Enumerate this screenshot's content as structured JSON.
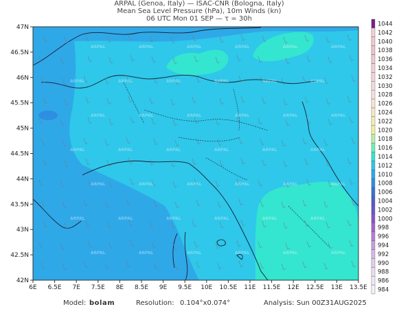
{
  "title": {
    "line1": "ARPAL (Genoa, Italy)  —  ISAC-CNR (Bologna, Italy)",
    "line2": "Mean Sea Level Pressure (hPa), 10m Winds (kn)",
    "line3": "06 UTC Mon 01 SEP  —  τ = 30h"
  },
  "map": {
    "lon_ticks": [
      "6E",
      "6.5E",
      "7E",
      "7.5E",
      "8E",
      "8.5E",
      "9E",
      "9.5E",
      "10E",
      "10.5E",
      "11E",
      "11.5E",
      "12E",
      "12.5E",
      "13E",
      "13.5E"
    ],
    "lat_ticks": [
      "47N",
      "46.5N",
      "46N",
      "45.5N",
      "45N",
      "44.5N",
      "44N",
      "43.5N",
      "43N",
      "42.5N",
      "42N"
    ],
    "lon_range": [
      6,
      13.5
    ],
    "lat_range": [
      42,
      47
    ],
    "watermark": "ARPAL"
  },
  "colorbar": {
    "levels": [
      "1044",
      "1042",
      "1040",
      "1038",
      "1036",
      "1034",
      "1032",
      "1030",
      "1028",
      "1026",
      "1024",
      "1022",
      "1020",
      "1018",
      "1016",
      "1014",
      "1012",
      "1010",
      "1008",
      "1006",
      "1004",
      "1002",
      "1000",
      "998",
      "996",
      "994",
      "992",
      "990",
      "988",
      "986",
      "984"
    ],
    "colors": {
      "1044": "#7a1e8c",
      "1042": "#f4d0d6",
      "1040": "#f2c9d0",
      "1038": "#f0c2cb",
      "1036": "#eecbd1",
      "1034": "#f1d3d8",
      "1032": "#f3d7dc",
      "1030": "#f4dcdf",
      "1028": "#f6e2df",
      "1026": "#f8e7d4",
      "1024": "#f8ebc4",
      "1022": "#f6efb6",
      "1020": "#f0f2a2",
      "1018": "#b7f1a8",
      "1016": "#6ff0b4",
      "1014": "#34e5cf",
      "1012": "#2fc7ea",
      "1010": "#2fa8e8",
      "1008": "#2f8ee2",
      "1006": "#3573dc",
      "1004": "#4b5fd4",
      "1002": "#6a56cf",
      "1000": "#8b54cc",
      "998": "#a464cf",
      "996": "#b87fd6",
      "994": "#c79ee0",
      "992": "#d6b8e8",
      "990": "#e1cfee",
      "988": "#eadff3",
      "986": "#f1eaf6",
      "984": "#f6f2f9"
    }
  },
  "footer": {
    "model_label": "Model:",
    "model_value": "bolam",
    "resolution_label": "Resolution:",
    "resolution_value": "0.104°x0.074°",
    "analysis_label": "Analysis:",
    "analysis_value": "Sun  00Z31AUG2025"
  }
}
